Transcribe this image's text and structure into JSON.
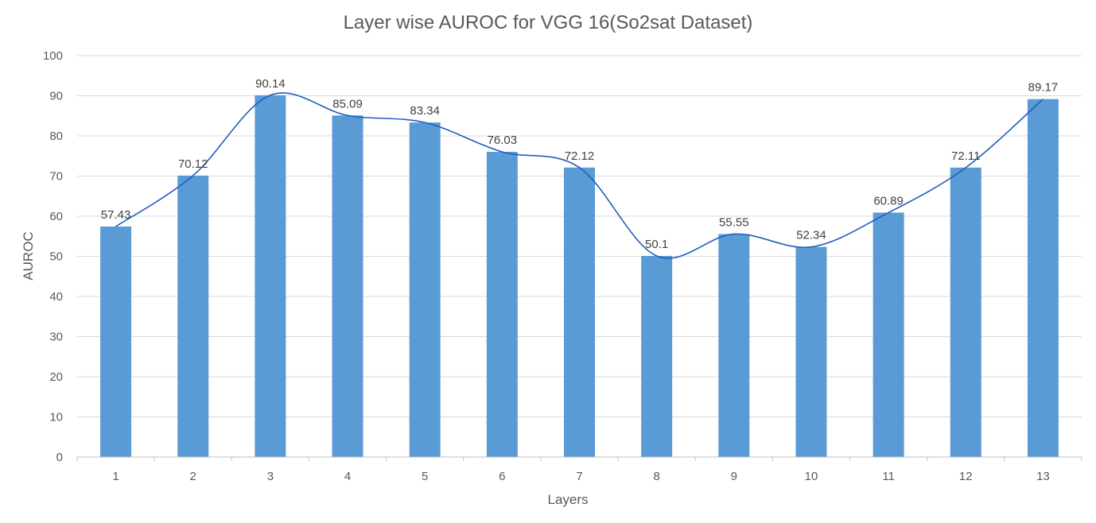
{
  "chart_data": {
    "type": "bar",
    "title": "Layer wise AUROC for VGG 16(So2sat Dataset)",
    "xlabel": "Layers",
    "ylabel": "AUROC",
    "categories": [
      "1",
      "2",
      "3",
      "4",
      "5",
      "6",
      "7",
      "8",
      "9",
      "10",
      "11",
      "12",
      "13"
    ],
    "values": [
      57.43,
      70.12,
      90.14,
      85.09,
      83.34,
      76.03,
      72.12,
      50.1,
      55.55,
      52.34,
      60.89,
      72.11,
      89.17
    ],
    "data_labels": [
      "57.43",
      "70.12",
      "90.14",
      "85.09",
      "83.34",
      "76.03",
      "72.12",
      "50.1",
      "55.55",
      "52.34",
      "60.89",
      "72.11",
      "89.17"
    ],
    "ylim": [
      0,
      100
    ],
    "yticks": [
      "0",
      "10",
      "20",
      "30",
      "40",
      "50",
      "60",
      "70",
      "80",
      "90",
      "100"
    ],
    "grid": true,
    "legend": "none",
    "overlay": "smoothed line through bar values",
    "colors": {
      "bar": "#5B9BD5",
      "line": "#1F5FBF",
      "grid": "#D9D9D9",
      "axis": "#BFBFBF",
      "text": "#595959"
    }
  }
}
